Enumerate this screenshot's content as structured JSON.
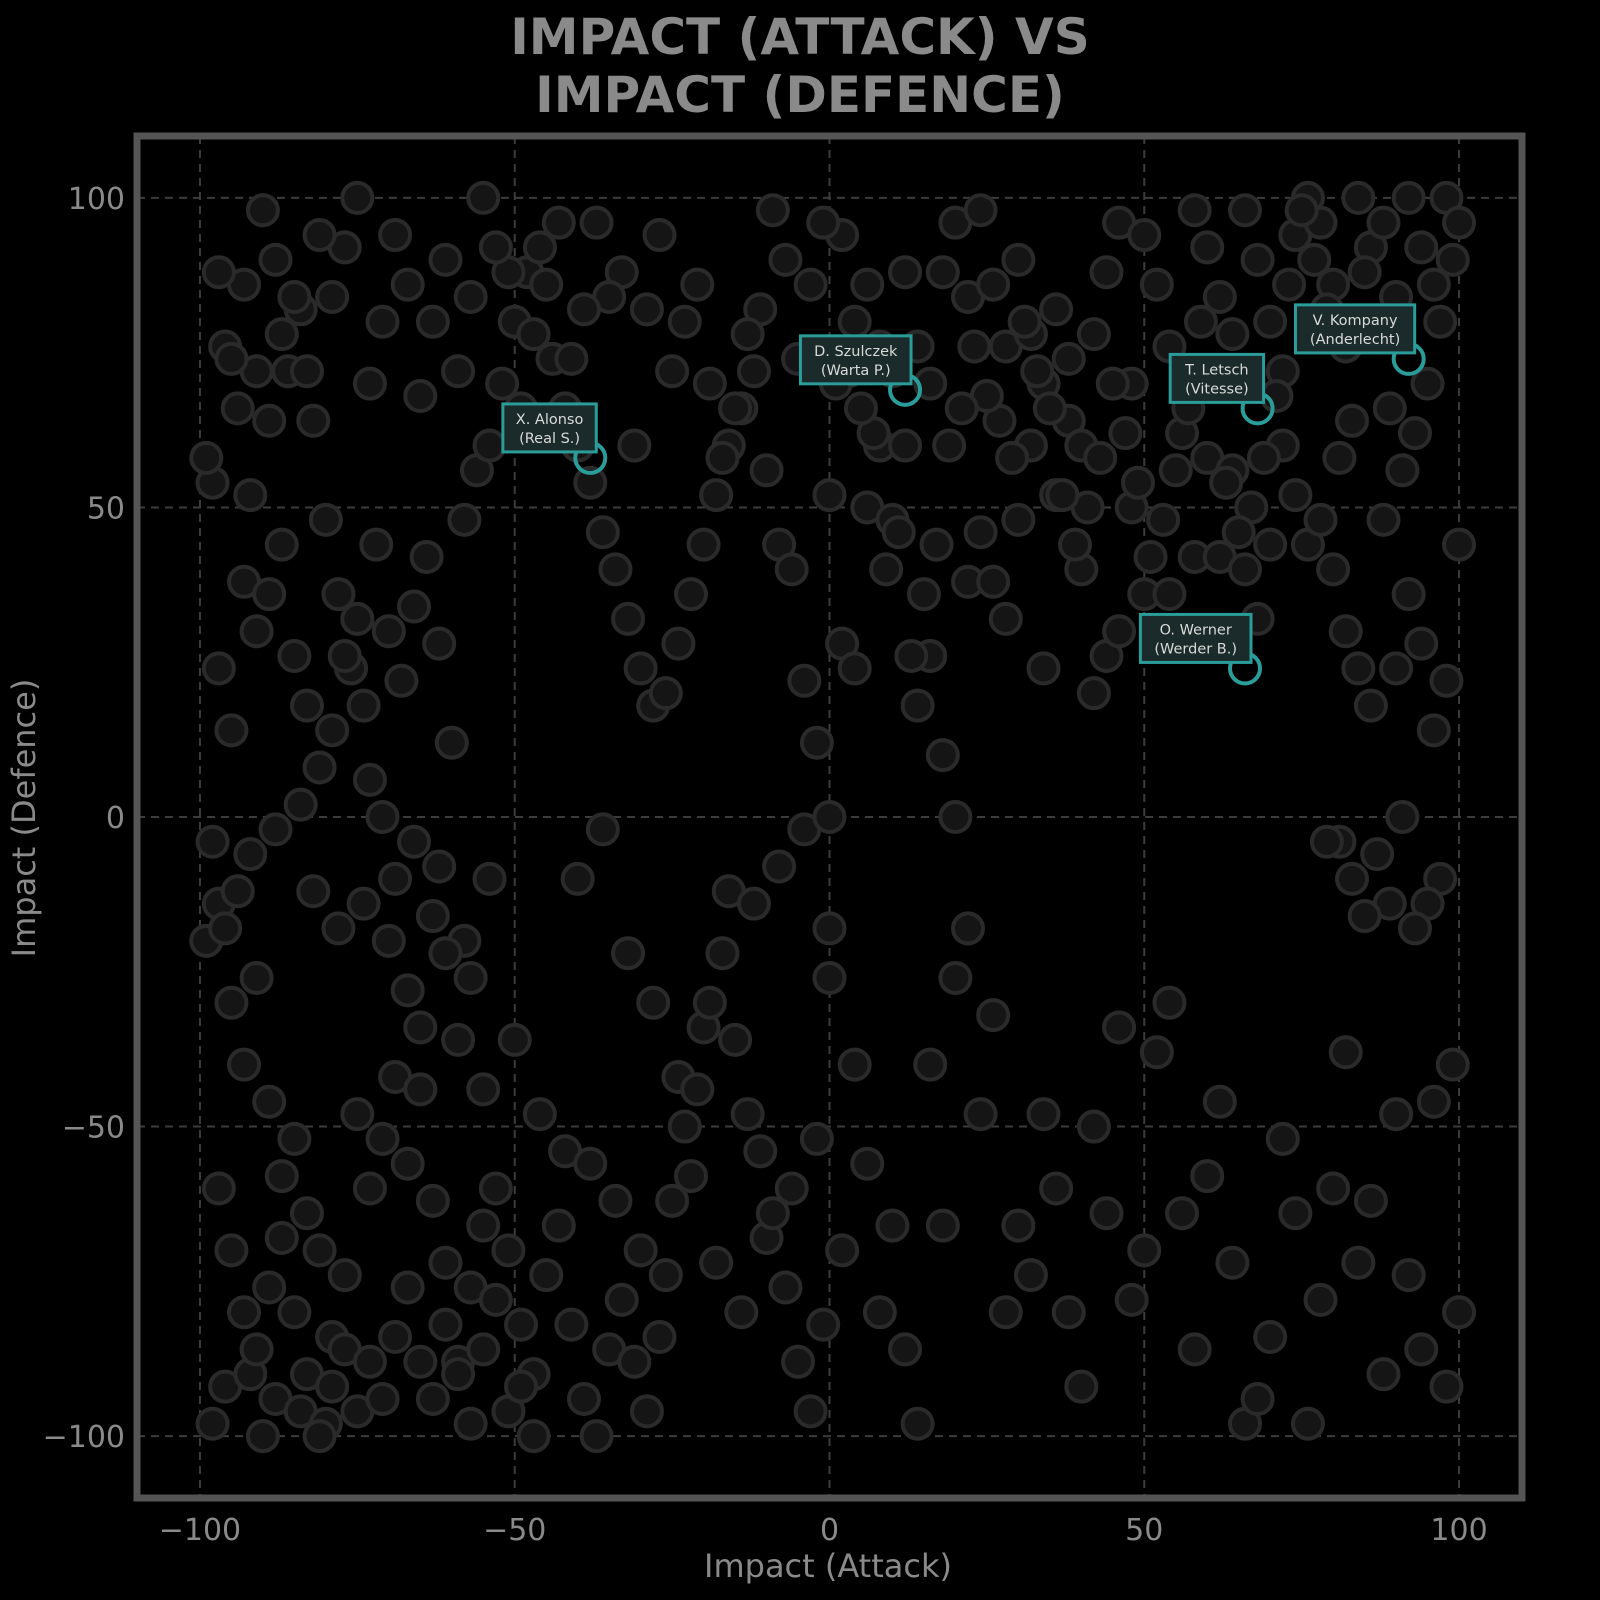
{
  "chart_data": {
    "type": "scatter",
    "title": "IMPACT (ATTACK) VS\nIMPACT (DEFENCE)",
    "xlabel": "Impact (Attack)",
    "ylabel": "Impact (Defence)",
    "xlim": [
      -110,
      110
    ],
    "ylim": [
      -110,
      110
    ],
    "xticks": [
      -100,
      -50,
      0,
      50,
      100
    ],
    "yticks": [
      -100,
      -50,
      0,
      50,
      100
    ],
    "xtick_labels": [
      "−100",
      "−50",
      "0",
      "50",
      "100"
    ],
    "ytick_labels": [
      "−100",
      "−50",
      "0",
      "50",
      "100"
    ],
    "grid": true,
    "colors": {
      "background": "#000000",
      "point_fill": "#151515",
      "point_edge": "#2a2a2a",
      "highlight": "#2a9d9a",
      "text": "#8a8a8a"
    },
    "highlighted": [
      {
        "name": "X. Alonso",
        "team": "(Real S.)",
        "x": -38,
        "y": 58
      },
      {
        "name": "D. Szulczek",
        "team": "(Warta P.)",
        "x": 12,
        "y": 69
      },
      {
        "name": "T. Letsch",
        "team": "(Vitesse)",
        "x": 68,
        "y": 66
      },
      {
        "name": "V. Kompany",
        "team": "(Anderlecht)",
        "x": 92,
        "y": 74
      },
      {
        "name": "O. Werner",
        "team": "(Werder B.)",
        "x": 66,
        "y": 24
      }
    ],
    "points": [
      [
        -98,
        -98
      ],
      [
        -96,
        -92
      ],
      [
        -92,
        -90
      ],
      [
        -90,
        -100
      ],
      [
        -88,
        -94
      ],
      [
        -84,
        -96
      ],
      [
        -80,
        -98
      ],
      [
        -99,
        -20
      ],
      [
        -97,
        -14
      ],
      [
        -95,
        -30
      ],
      [
        -93,
        -40
      ],
      [
        -91,
        -26
      ],
      [
        -89,
        -46
      ],
      [
        -87,
        -58
      ],
      [
        -85,
        -52
      ],
      [
        -83,
        -64
      ],
      [
        -81,
        -70
      ],
      [
        -79,
        -84
      ],
      [
        -77,
        -74
      ],
      [
        -75,
        -48
      ],
      [
        -73,
        -60
      ],
      [
        -71,
        -52
      ],
      [
        -69,
        -42
      ],
      [
        -67,
        -56
      ],
      [
        -65,
        -44
      ],
      [
        -63,
        -62
      ],
      [
        -61,
        -72
      ],
      [
        -59,
        -88
      ],
      [
        -57,
        -76
      ],
      [
        -55,
        -66
      ],
      [
        -98,
        54
      ],
      [
        -96,
        76
      ],
      [
        -94,
        66
      ],
      [
        -92,
        52
      ],
      [
        -90,
        98
      ],
      [
        -88,
        90
      ],
      [
        -86,
        72
      ],
      [
        -84,
        82
      ],
      [
        -82,
        64
      ],
      [
        -80,
        48
      ],
      [
        -78,
        36
      ],
      [
        -76,
        24
      ],
      [
        -74,
        18
      ],
      [
        -72,
        44
      ],
      [
        -70,
        30
      ],
      [
        -68,
        22
      ],
      [
        -66,
        34
      ],
      [
        -64,
        42
      ],
      [
        -62,
        28
      ],
      [
        -60,
        12
      ],
      [
        -58,
        48
      ],
      [
        -56,
        56
      ],
      [
        -54,
        60
      ],
      [
        -52,
        70
      ],
      [
        -50,
        80
      ],
      [
        -48,
        88
      ],
      [
        -46,
        92
      ],
      [
        -44,
        74
      ],
      [
        -42,
        66
      ],
      [
        -40,
        60
      ],
      [
        -38,
        54
      ],
      [
        -36,
        46
      ],
      [
        -34,
        40
      ],
      [
        -32,
        32
      ],
      [
        -30,
        24
      ],
      [
        -28,
        18
      ],
      [
        -26,
        20
      ],
      [
        -24,
        28
      ],
      [
        -22,
        36
      ],
      [
        -20,
        44
      ],
      [
        -18,
        52
      ],
      [
        -16,
        60
      ],
      [
        -14,
        66
      ],
      [
        -12,
        72
      ],
      [
        -10,
        56
      ],
      [
        -8,
        44
      ],
      [
        -6,
        40
      ],
      [
        -4,
        22
      ],
      [
        -2,
        12
      ],
      [
        -98,
        -4
      ],
      [
        -96,
        -18
      ],
      [
        -94,
        -12
      ],
      [
        -92,
        -6
      ],
      [
        -88,
        -2
      ],
      [
        -84,
        2
      ],
      [
        -82,
        -12
      ],
      [
        -78,
        -18
      ],
      [
        -74,
        -14
      ],
      [
        -70,
        -20
      ],
      [
        -66,
        -4
      ],
      [
        -62,
        -8
      ],
      [
        -58,
        -20
      ],
      [
        -54,
        -10
      ],
      [
        -50,
        -36
      ],
      [
        -46,
        -48
      ],
      [
        -42,
        -54
      ],
      [
        -38,
        -56
      ],
      [
        -34,
        -62
      ],
      [
        -30,
        -70
      ],
      [
        -26,
        -74
      ],
      [
        -22,
        -58
      ],
      [
        -18,
        -72
      ],
      [
        -14,
        -80
      ],
      [
        -10,
        -68
      ],
      [
        -6,
        -60
      ],
      [
        -2,
        -52
      ],
      [
        -40,
        -10
      ],
      [
        -36,
        -2
      ],
      [
        -32,
        -22
      ],
      [
        -28,
        -30
      ],
      [
        -24,
        -42
      ],
      [
        -20,
        -34
      ],
      [
        -16,
        -12
      ],
      [
        -12,
        -14
      ],
      [
        -8,
        -8
      ],
      [
        -4,
        -2
      ],
      [
        0,
        0
      ],
      [
        0,
        -18
      ],
      [
        0,
        -26
      ],
      [
        2,
        -70
      ],
      [
        4,
        -40
      ],
      [
        6,
        -56
      ],
      [
        8,
        -80
      ],
      [
        10,
        -66
      ],
      [
        12,
        -86
      ],
      [
        14,
        -98
      ],
      [
        16,
        -40
      ],
      [
        18,
        -66
      ],
      [
        20,
        -26
      ],
      [
        22,
        -18
      ],
      [
        24,
        -48
      ],
      [
        26,
        -32
      ],
      [
        28,
        -80
      ],
      [
        30,
        -66
      ],
      [
        32,
        -74
      ],
      [
        34,
        -48
      ],
      [
        36,
        -60
      ],
      [
        38,
        -80
      ],
      [
        40,
        -92
      ],
      [
        42,
        -50
      ],
      [
        44,
        -64
      ],
      [
        46,
        -34
      ],
      [
        48,
        -78
      ],
      [
        50,
        -70
      ],
      [
        52,
        -38
      ],
      [
        54,
        -30
      ],
      [
        56,
        -64
      ],
      [
        58,
        -86
      ],
      [
        60,
        -58
      ],
      [
        62,
        -46
      ],
      [
        64,
        -72
      ],
      [
        66,
        -98
      ],
      [
        68,
        -94
      ],
      [
        70,
        -84
      ],
      [
        72,
        -52
      ],
      [
        74,
        -64
      ],
      [
        76,
        -98
      ],
      [
        78,
        -78
      ],
      [
        80,
        -60
      ],
      [
        82,
        -38
      ],
      [
        84,
        -72
      ],
      [
        86,
        -62
      ],
      [
        88,
        -90
      ],
      [
        90,
        -48
      ],
      [
        92,
        -74
      ],
      [
        94,
        -86
      ],
      [
        96,
        -46
      ],
      [
        98,
        -92
      ],
      [
        100,
        -80
      ],
      [
        99,
        -40
      ],
      [
        97,
        -10
      ],
      [
        95,
        -14
      ],
      [
        93,
        -18
      ],
      [
        91,
        0
      ],
      [
        89,
        -14
      ],
      [
        87,
        -6
      ],
      [
        85,
        -16
      ],
      [
        83,
        -10
      ],
      [
        81,
        -4
      ],
      [
        79,
        -4
      ],
      [
        0,
        52
      ],
      [
        2,
        28
      ],
      [
        4,
        24
      ],
      [
        6,
        50
      ],
      [
        8,
        60
      ],
      [
        10,
        48
      ],
      [
        12,
        60
      ],
      [
        14,
        18
      ],
      [
        16,
        26
      ],
      [
        18,
        10
      ],
      [
        20,
        0
      ],
      [
        22,
        38
      ],
      [
        24,
        46
      ],
      [
        26,
        38
      ],
      [
        28,
        32
      ],
      [
        30,
        48
      ],
      [
        32,
        60
      ],
      [
        34,
        24
      ],
      [
        36,
        52
      ],
      [
        38,
        64
      ],
      [
        40,
        40
      ],
      [
        42,
        20
      ],
      [
        44,
        26
      ],
      [
        46,
        30
      ],
      [
        48,
        50
      ],
      [
        50,
        36
      ],
      [
        52,
        28
      ],
      [
        54,
        36
      ],
      [
        56,
        28
      ],
      [
        58,
        42
      ],
      [
        60,
        58
      ],
      [
        62,
        42
      ],
      [
        64,
        56
      ],
      [
        66,
        40
      ],
      [
        68,
        32
      ],
      [
        70,
        44
      ],
      [
        72,
        60
      ],
      [
        74,
        52
      ],
      [
        76,
        44
      ],
      [
        78,
        48
      ],
      [
        80,
        40
      ],
      [
        82,
        30
      ],
      [
        84,
        24
      ],
      [
        86,
        18
      ],
      [
        88,
        48
      ],
      [
        90,
        24
      ],
      [
        92,
        36
      ],
      [
        94,
        28
      ],
      [
        96,
        14
      ],
      [
        98,
        22
      ],
      [
        100,
        44
      ],
      [
        2,
        94
      ],
      [
        4,
        80
      ],
      [
        6,
        86
      ],
      [
        8,
        76
      ],
      [
        10,
        72
      ],
      [
        12,
        88
      ],
      [
        14,
        76
      ],
      [
        16,
        70
      ],
      [
        18,
        88
      ],
      [
        20,
        96
      ],
      [
        22,
        84
      ],
      [
        24,
        98
      ],
      [
        26,
        86
      ],
      [
        28,
        76
      ],
      [
        30,
        90
      ],
      [
        32,
        78
      ],
      [
        34,
        70
      ],
      [
        36,
        82
      ],
      [
        38,
        74
      ],
      [
        40,
        60
      ],
      [
        42,
        78
      ],
      [
        44,
        88
      ],
      [
        46,
        96
      ],
      [
        48,
        70
      ],
      [
        50,
        94
      ],
      [
        52,
        86
      ],
      [
        54,
        76
      ],
      [
        56,
        62
      ],
      [
        58,
        98
      ],
      [
        60,
        92
      ],
      [
        62,
        84
      ],
      [
        64,
        78
      ],
      [
        66,
        98
      ],
      [
        68,
        90
      ],
      [
        70,
        80
      ],
      [
        72,
        72
      ],
      [
        74,
        94
      ],
      [
        76,
        100
      ],
      [
        78,
        96
      ],
      [
        80,
        86
      ],
      [
        82,
        76
      ],
      [
        84,
        100
      ],
      [
        86,
        92
      ],
      [
        88,
        96
      ],
      [
        90,
        84
      ],
      [
        92,
        100
      ],
      [
        94,
        92
      ],
      [
        96,
        86
      ],
      [
        98,
        100
      ],
      [
        100,
        96
      ],
      [
        99,
        90
      ],
      [
        97,
        80
      ],
      [
        95,
        70
      ],
      [
        93,
        62
      ],
      [
        91,
        56
      ],
      [
        89,
        66
      ],
      [
        87,
        78
      ],
      [
        85,
        88
      ],
      [
        83,
        64
      ],
      [
        81,
        58
      ],
      [
        79,
        82
      ],
      [
        77,
        90
      ],
      [
        75,
        98
      ],
      [
        73,
        86
      ],
      [
        71,
        68
      ],
      [
        69,
        58
      ],
      [
        67,
        50
      ],
      [
        65,
        46
      ],
      [
        63,
        54
      ],
      [
        61,
        72
      ],
      [
        59,
        80
      ],
      [
        57,
        66
      ],
      [
        55,
        56
      ],
      [
        53,
        48
      ],
      [
        51,
        42
      ],
      [
        49,
        54
      ],
      [
        47,
        62
      ],
      [
        45,
        70
      ],
      [
        43,
        58
      ],
      [
        41,
        50
      ],
      [
        39,
        44
      ],
      [
        37,
        52
      ],
      [
        35,
        66
      ],
      [
        33,
        72
      ],
      [
        31,
        80
      ],
      [
        29,
        58
      ],
      [
        27,
        64
      ],
      [
        25,
        68
      ],
      [
        23,
        76
      ],
      [
        21,
        66
      ],
      [
        19,
        60
      ],
      [
        17,
        44
      ],
      [
        15,
        36
      ],
      [
        13,
        26
      ],
      [
        11,
        46
      ],
      [
        9,
        40
      ],
      [
        7,
        62
      ],
      [
        5,
        66
      ],
      [
        3,
        72
      ],
      [
        1,
        70
      ],
      [
        -1,
        96
      ],
      [
        -3,
        86
      ],
      [
        -5,
        74
      ],
      [
        -7,
        90
      ],
      [
        -9,
        98
      ],
      [
        -11,
        82
      ],
      [
        -13,
        78
      ],
      [
        -15,
        66
      ],
      [
        -17,
        58
      ],
      [
        -19,
        70
      ],
      [
        -21,
        86
      ],
      [
        -23,
        80
      ],
      [
        -25,
        72
      ],
      [
        -27,
        94
      ],
      [
        -29,
        82
      ],
      [
        -31,
        60
      ],
      [
        -33,
        88
      ],
      [
        -35,
        84
      ],
      [
        -37,
        96
      ],
      [
        -39,
        82
      ],
      [
        -41,
        74
      ],
      [
        -43,
        96
      ],
      [
        -45,
        86
      ],
      [
        -47,
        78
      ],
      [
        -49,
        66
      ],
      [
        -51,
        88
      ],
      [
        -53,
        92
      ],
      [
        -55,
        100
      ],
      [
        -57,
        84
      ],
      [
        -59,
        72
      ],
      [
        -61,
        90
      ],
      [
        -63,
        80
      ],
      [
        -65,
        68
      ],
      [
        -67,
        86
      ],
      [
        -69,
        94
      ],
      [
        -71,
        80
      ],
      [
        -73,
        70
      ],
      [
        -75,
        100
      ],
      [
        -77,
        92
      ],
      [
        -79,
        84
      ],
      [
        -81,
        94
      ],
      [
        -83,
        72
      ],
      [
        -85,
        84
      ],
      [
        -87,
        78
      ],
      [
        -89,
        64
      ],
      [
        -91,
        72
      ],
      [
        -93,
        86
      ],
      [
        -95,
        74
      ],
      [
        -97,
        88
      ],
      [
        -99,
        58
      ],
      [
        -97,
        24
      ],
      [
        -95,
        14
      ],
      [
        -93,
        38
      ],
      [
        -91,
        30
      ],
      [
        -89,
        36
      ],
      [
        -87,
        44
      ],
      [
        -85,
        26
      ],
      [
        -83,
        18
      ],
      [
        -81,
        8
      ],
      [
        -79,
        14
      ],
      [
        -77,
        26
      ],
      [
        -75,
        32
      ],
      [
        -73,
        6
      ],
      [
        -71,
        0
      ],
      [
        -69,
        -10
      ],
      [
        -67,
        -28
      ],
      [
        -65,
        -34
      ],
      [
        -63,
        -16
      ],
      [
        -61,
        -22
      ],
      [
        -59,
        -36
      ],
      [
        -57,
        -26
      ],
      [
        -55,
        -44
      ],
      [
        -53,
        -60
      ],
      [
        -51,
        -70
      ],
      [
        -49,
        -82
      ],
      [
        -47,
        -90
      ],
      [
        -45,
        -74
      ],
      [
        -43,
        -66
      ],
      [
        -41,
        -82
      ],
      [
        -39,
        -94
      ],
      [
        -37,
        -100
      ],
      [
        -35,
        -86
      ],
      [
        -33,
        -78
      ],
      [
        -31,
        -88
      ],
      [
        -29,
        -96
      ],
      [
        -27,
        -84
      ],
      [
        -25,
        -62
      ],
      [
        -23,
        -50
      ],
      [
        -21,
        -44
      ],
      [
        -19,
        -30
      ],
      [
        -17,
        -22
      ],
      [
        -15,
        -36
      ],
      [
        -13,
        -48
      ],
      [
        -11,
        -54
      ],
      [
        -9,
        -64
      ],
      [
        -7,
        -76
      ],
      [
        -5,
        -88
      ],
      [
        -3,
        -96
      ],
      [
        -1,
        -82
      ],
      [
        -97,
        -60
      ],
      [
        -95,
        -70
      ],
      [
        -93,
        -80
      ],
      [
        -91,
        -86
      ],
      [
        -89,
        -76
      ],
      [
        -87,
        -68
      ],
      [
        -85,
        -80
      ],
      [
        -83,
        -90
      ],
      [
        -81,
        -100
      ],
      [
        -79,
        -92
      ],
      [
        -77,
        -86
      ],
      [
        -75,
        -96
      ],
      [
        -73,
        -88
      ],
      [
        -71,
        -94
      ],
      [
        -69,
        -84
      ],
      [
        -67,
        -76
      ],
      [
        -65,
        -88
      ],
      [
        -63,
        -94
      ],
      [
        -61,
        -82
      ],
      [
        -59,
        -90
      ],
      [
        -57,
        -98
      ],
      [
        -55,
        -86
      ],
      [
        -53,
        -78
      ],
      [
        -51,
        -96
      ],
      [
        -49,
        -92
      ],
      [
        -47,
        -100
      ]
    ]
  }
}
